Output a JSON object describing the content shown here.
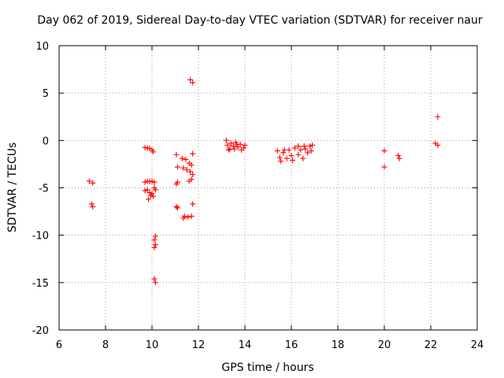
{
  "colors": {
    "series": "#ff0000",
    "axes": "#000000",
    "grid": "#a0a0a0"
  },
  "chart_data": {
    "type": "scatter",
    "title": "Day 062 of 2019, Sidereal Day-to-day VTEC variation (SDTVAR) for receiver naur",
    "xlabel": "GPS time / hours",
    "ylabel": "SDTVAR / TECUs",
    "xlim": [
      6,
      24
    ],
    "ylim": [
      -20,
      10
    ],
    "xticks": [
      6,
      8,
      10,
      12,
      14,
      16,
      18,
      20,
      22,
      24
    ],
    "yticks": [
      -20,
      -15,
      -10,
      -5,
      0,
      5,
      10
    ],
    "xtick_labels": [
      "6",
      "8",
      "10",
      "12",
      "14",
      "16",
      "18",
      "20",
      "22",
      "24"
    ],
    "ytick_labels": [
      "-20",
      "-15",
      "-10",
      "-5",
      "0",
      "5",
      "10"
    ],
    "grid": true,
    "marker": "+",
    "series": [
      {
        "name": "SDTVAR",
        "color": "#ff0000",
        "points": [
          [
            7.3,
            -4.3
          ],
          [
            7.45,
            -4.5
          ],
          [
            7.4,
            -6.7
          ],
          [
            7.45,
            -7.0
          ],
          [
            9.7,
            -0.75
          ],
          [
            9.8,
            -0.8
          ],
          [
            9.9,
            -0.85
          ],
          [
            10.0,
            -1.0
          ],
          [
            10.05,
            -1.2
          ],
          [
            9.7,
            -4.4
          ],
          [
            9.8,
            -4.3
          ],
          [
            9.9,
            -4.35
          ],
          [
            10.0,
            -4.3
          ],
          [
            10.1,
            -4.4
          ],
          [
            9.7,
            -5.3
          ],
          [
            9.8,
            -5.2
          ],
          [
            9.9,
            -5.5
          ],
          [
            9.95,
            -5.8
          ],
          [
            10.0,
            -5.6
          ],
          [
            10.1,
            -5.0
          ],
          [
            10.15,
            -5.2
          ],
          [
            10.05,
            -5.9
          ],
          [
            9.85,
            -6.2
          ],
          [
            10.15,
            -10.1
          ],
          [
            10.1,
            -10.5
          ],
          [
            10.15,
            -11.0
          ],
          [
            10.1,
            -11.3
          ],
          [
            10.1,
            -14.6
          ],
          [
            10.15,
            -15.0
          ],
          [
            11.05,
            -1.5
          ],
          [
            11.1,
            -2.8
          ],
          [
            11.3,
            -1.9
          ],
          [
            11.35,
            -2.9
          ],
          [
            11.45,
            -2.0
          ],
          [
            11.5,
            -3.1
          ],
          [
            11.6,
            -2.4
          ],
          [
            11.65,
            -3.3
          ],
          [
            11.7,
            -2.6
          ],
          [
            11.75,
            -1.4
          ],
          [
            11.75,
            -3.6
          ],
          [
            11.7,
            -4.1
          ],
          [
            11.6,
            -4.3
          ],
          [
            11.1,
            -4.4
          ],
          [
            11.05,
            -4.6
          ],
          [
            11.05,
            -7.0
          ],
          [
            11.1,
            -7.1
          ],
          [
            11.35,
            -8.2
          ],
          [
            11.4,
            -8.0
          ],
          [
            11.55,
            -8.1
          ],
          [
            11.7,
            -8.0
          ],
          [
            11.75,
            -6.7
          ],
          [
            11.65,
            6.4
          ],
          [
            11.75,
            6.1
          ],
          [
            13.2,
            0.0
          ],
          [
            13.25,
            -0.5
          ],
          [
            13.3,
            -1.0
          ],
          [
            13.4,
            -0.3
          ],
          [
            13.5,
            -0.6
          ],
          [
            13.6,
            -0.2
          ],
          [
            13.7,
            -0.7
          ],
          [
            13.8,
            -0.4
          ],
          [
            13.85,
            -1.0
          ],
          [
            13.95,
            -0.8
          ],
          [
            14.0,
            -0.5
          ],
          [
            13.35,
            -0.9
          ],
          [
            13.55,
            -0.9
          ],
          [
            13.65,
            -0.4
          ],
          [
            15.4,
            -1.1
          ],
          [
            15.5,
            -1.8
          ],
          [
            15.55,
            -2.2
          ],
          [
            15.65,
            -1.3
          ],
          [
            15.8,
            -1.9
          ],
          [
            15.9,
            -1.0
          ],
          [
            16.0,
            -1.6
          ],
          [
            16.05,
            -2.1
          ],
          [
            16.15,
            -0.8
          ],
          [
            16.3,
            -1.5
          ],
          [
            16.4,
            -1.0
          ],
          [
            16.5,
            -1.9
          ],
          [
            16.6,
            -0.9
          ],
          [
            16.7,
            -1.3
          ],
          [
            16.8,
            -0.6
          ],
          [
            16.85,
            -1.1
          ],
          [
            16.9,
            -0.5
          ],
          [
            16.3,
            -0.6
          ],
          [
            16.55,
            -0.6
          ],
          [
            15.7,
            -1.0
          ],
          [
            20.0,
            -1.1
          ],
          [
            20.0,
            -2.8
          ],
          [
            20.6,
            -1.6
          ],
          [
            20.65,
            -1.9
          ],
          [
            22.2,
            -0.3
          ],
          [
            22.3,
            -0.5
          ],
          [
            22.3,
            2.5
          ]
        ]
      }
    ]
  }
}
